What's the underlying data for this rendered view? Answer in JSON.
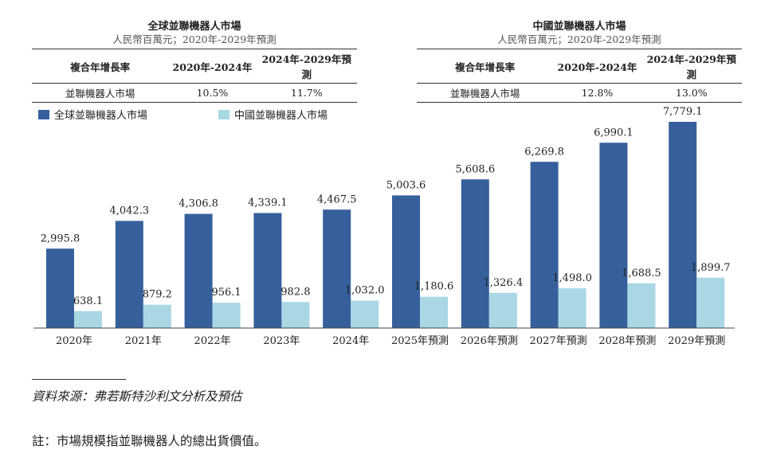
{
  "left_panel": {
    "title": "全球並聯機器人市場",
    "subtitle": "人民幣百萬元；2020年-2029年預測",
    "table": {
      "headers": [
        "複合年增長率",
        "2020年-2024年",
        "2024年-2029年預測"
      ],
      "row": [
        "並聯機器人市場",
        "10.5%",
        "11.7%"
      ]
    }
  },
  "right_panel": {
    "title": "中國並聯機器人市場",
    "subtitle": "人民幣百萬元；2020年-2029年預測",
    "table": {
      "headers": [
        "複合年增長率",
        "2020年-2024年",
        "2024年-2029年預測"
      ],
      "row": [
        "並聯機器人市場",
        "12.8%",
        "13.0%"
      ]
    }
  },
  "chart_data": {
    "type": "bar",
    "categories": [
      "2020年",
      "2021年",
      "2022年",
      "2023年",
      "2024年",
      "2025年預測",
      "2026年預測",
      "2027年預測",
      "2028年預測",
      "2029年預測"
    ],
    "series": [
      {
        "name": "全球並聯機器人市場",
        "color": "#36609c",
        "values": [
          2995.8,
          4042.3,
          4306.8,
          4339.1,
          4467.5,
          5003.6,
          5608.6,
          6269.8,
          6990.1,
          7779.1
        ],
        "labels": [
          "2,995.8",
          "4,042.3",
          "4,306.8",
          "4,339.1",
          "4,467.5",
          "5,003.6",
          "5,608.6",
          "6,269.8",
          "6,990.1",
          "7,779.1"
        ]
      },
      {
        "name": "中國並聯機器人市場",
        "color": "#a9d7e4",
        "values": [
          638.1,
          879.2,
          956.1,
          982.8,
          1032.0,
          1180.6,
          1326.4,
          1498.0,
          1688.5,
          1899.7
        ],
        "labels": [
          "638.1",
          "879.2",
          "956.1",
          "982.8",
          "1,032.0",
          "1,180.6",
          "1,326.4",
          "1,498.0",
          "1,688.5",
          "1,899.7"
        ]
      }
    ],
    "ylim": [
      0,
      7779.1
    ],
    "legend_position": "top-left",
    "grid": false
  },
  "footnotes": {
    "source": "資料來源：弗若斯特沙利文分析及預估",
    "note": "註：市場規模指並聯機器人的總出貨價值。"
  }
}
